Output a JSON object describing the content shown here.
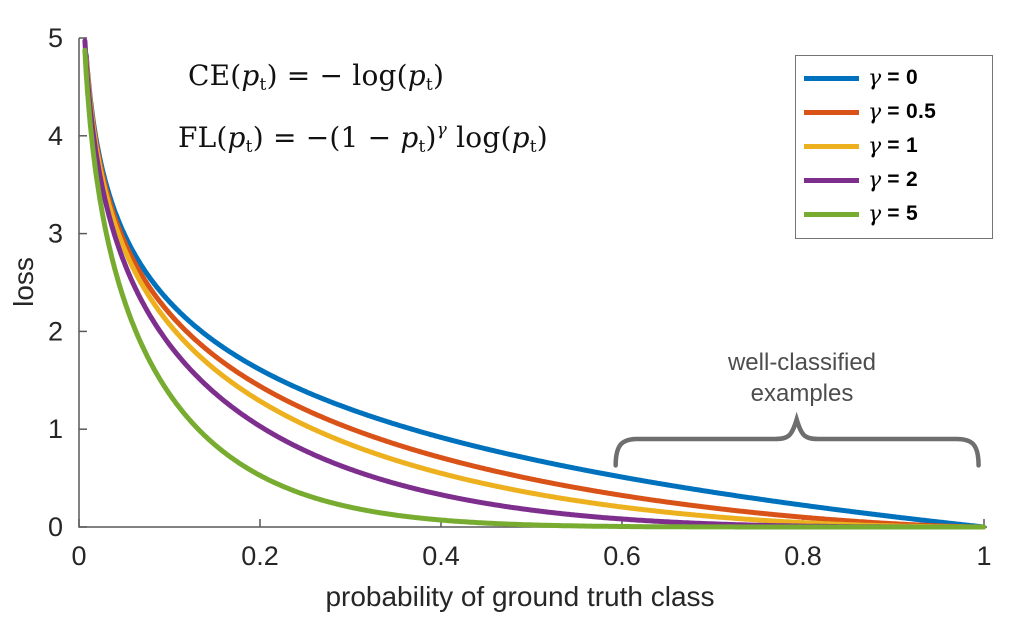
{
  "chart_data": {
    "type": "line",
    "title": "",
    "xlabel": "probability of ground truth class",
    "ylabel": "loss",
    "xlim": [
      0,
      1
    ],
    "ylim": [
      0,
      5
    ],
    "x_tick_values": [
      0,
      0.2,
      0.4,
      0.6,
      0.8,
      1
    ],
    "x_tick_labels": [
      "0",
      "0.2",
      "0.4",
      "0.6",
      "0.8",
      "1"
    ],
    "y_tick_values": [
      0,
      1,
      2,
      3,
      4,
      5
    ],
    "y_tick_labels": [
      "0",
      "1",
      "2",
      "3",
      "4",
      "5"
    ],
    "grid": false,
    "legend_position": "northeast",
    "function": "FL(pt) = -(1-pt)^gamma * log(pt); gamma=0 gives CE",
    "axis_color": "#595959",
    "tick_label_color": "#262626",
    "line_width": 5,
    "sample_x": [
      0.01,
      0.02,
      0.05,
      0.1,
      0.2,
      0.3,
      0.4,
      0.5,
      0.6,
      0.7,
      0.8,
      0.9,
      1.0
    ],
    "series": [
      {
        "name": "γ = 0",
        "gamma": 0,
        "color": "#0072BD",
        "values": [
          4.61,
          3.91,
          3.0,
          2.3,
          1.61,
          1.2,
          0.92,
          0.69,
          0.51,
          0.36,
          0.22,
          0.11,
          0
        ]
      },
      {
        "name": "γ = 0.5",
        "gamma": 0.5,
        "color": "#D95319",
        "values": [
          4.58,
          3.87,
          2.92,
          2.18,
          1.44,
          1.01,
          0.71,
          0.49,
          0.32,
          0.2,
          0.1,
          0.03,
          0
        ]
      },
      {
        "name": "γ = 1",
        "gamma": 1,
        "color": "#EDB120",
        "values": [
          4.56,
          3.83,
          2.85,
          2.07,
          1.29,
          0.84,
          0.55,
          0.35,
          0.2,
          0.11,
          0.04,
          0.01,
          0
        ]
      },
      {
        "name": "γ = 2",
        "gamma": 2,
        "color": "#7E2F8E",
        "values": [
          4.51,
          3.76,
          2.7,
          1.87,
          1.03,
          0.59,
          0.33,
          0.17,
          0.08,
          0.03,
          0.009,
          0.001,
          0
        ]
      },
      {
        "name": "γ = 5",
        "gamma": 5,
        "color": "#77AC30",
        "values": [
          4.38,
          3.54,
          2.32,
          1.36,
          0.53,
          0.2,
          0.07,
          0.02,
          0.005,
          0.001,
          0.0001,
          0,
          0
        ]
      }
    ]
  },
  "equations": {
    "ce": {
      "text": "CE(pt) = − log(pt)",
      "segments": [
        {
          "s": "rm",
          "t": "CE("
        },
        {
          "s": "var",
          "t": "p"
        },
        {
          "s": "sub",
          "t": "t"
        },
        {
          "s": "rm",
          "t": ") = − log("
        },
        {
          "s": "var",
          "t": "p"
        },
        {
          "s": "sub",
          "t": "t"
        },
        {
          "s": "rm",
          "t": ")"
        }
      ]
    },
    "fl": {
      "text": "FL(pt) = −(1 − pt)^γ log(pt)",
      "segments": [
        {
          "s": "rm",
          "t": "FL("
        },
        {
          "s": "var",
          "t": "p"
        },
        {
          "s": "sub",
          "t": "t"
        },
        {
          "s": "rm",
          "t": ") = −(1 − "
        },
        {
          "s": "var",
          "t": "p"
        },
        {
          "s": "sub",
          "t": "t"
        },
        {
          "s": "rm",
          "t": ")"
        },
        {
          "s": "sup",
          "t": "γ"
        },
        {
          "s": "rm",
          "t": " log("
        },
        {
          "s": "var",
          "t": "p"
        },
        {
          "s": "sub",
          "t": "t"
        },
        {
          "s": "rm",
          "t": ")"
        }
      ]
    }
  },
  "annotations": {
    "well_classified": {
      "line1": "well-classified",
      "line2": "examples",
      "color": "#4d4d4d"
    },
    "brace": {
      "x_start": 0.593,
      "x_end": 0.994,
      "x_tip": 0.793,
      "loss_end": 0.63,
      "loss_bar": 0.9,
      "loss_tip": 1.1,
      "color": "#6e6e6e",
      "width": 4.5
    }
  }
}
